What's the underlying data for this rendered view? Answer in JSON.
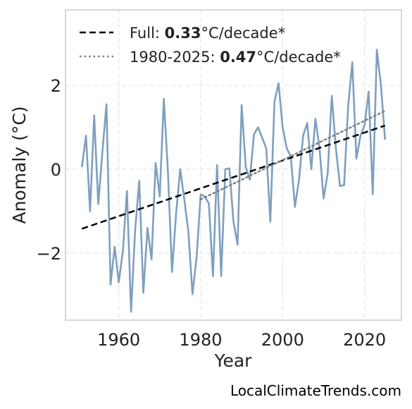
{
  "chart_data": {
    "type": "line",
    "xlabel": "Year",
    "ylabel": "Anomaly (°C)",
    "xlim": [
      1947,
      2029
    ],
    "ylim": [
      -3.6,
      3.8
    ],
    "x_ticks": [
      1960,
      1980,
      2000,
      2020
    ],
    "y_ticks": [
      -2,
      0,
      2
    ],
    "y_tick_labels": [
      "−2",
      "0",
      "2"
    ],
    "grid": true,
    "legend_position": "top-left",
    "series": [
      {
        "role": "observed",
        "color": "#7f9fbf",
        "x": [
          1951,
          1952,
          1953,
          1954,
          1955,
          1956,
          1957,
          1958,
          1959,
          1960,
          1961,
          1962,
          1963,
          1964,
          1965,
          1966,
          1967,
          1968,
          1969,
          1970,
          1971,
          1972,
          1973,
          1974,
          1975,
          1976,
          1977,
          1978,
          1979,
          1980,
          1981,
          1982,
          1983,
          1984,
          1985,
          1986,
          1987,
          1988,
          1989,
          1990,
          1991,
          1992,
          1993,
          1994,
          1995,
          1996,
          1997,
          1998,
          1999,
          2000,
          2001,
          2002,
          2003,
          2004,
          2005,
          2006,
          2007,
          2008,
          2009,
          2010,
          2011,
          2012,
          2013,
          2014,
          2015,
          2016,
          2017,
          2018,
          2019,
          2020,
          2021,
          2022,
          2023,
          2024,
          2025
        ],
        "values": [
          0.05,
          0.8,
          -1.0,
          1.28,
          -0.83,
          0.4,
          1.55,
          -2.75,
          -1.85,
          -2.7,
          -1.95,
          -0.52,
          -3.4,
          -1.45,
          -0.28,
          -2.95,
          -1.4,
          -2.15,
          0.15,
          -0.65,
          1.68,
          -0.05,
          -2.45,
          -1.05,
          0.0,
          -0.72,
          -1.5,
          -2.98,
          -2.1,
          -0.6,
          -0.65,
          -0.82,
          -2.55,
          0.1,
          -2.55,
          0.0,
          0.02,
          -1.25,
          -1.8,
          1.53,
          0.05,
          -0.25,
          0.83,
          1.0,
          0.75,
          0.5,
          -1.25,
          1.6,
          2.05,
          1.0,
          0.5,
          0.3,
          -0.9,
          -0.25,
          0.8,
          1.1,
          0.0,
          1.2,
          0.5,
          -0.7,
          -0.1,
          1.75,
          0.5,
          -0.4,
          -0.38,
          1.5,
          2.55,
          0.25,
          0.8,
          1.05,
          1.85,
          -0.6,
          2.85,
          2.0,
          0.7
        ]
      },
      {
        "role": "trend-full",
        "color": "#000000",
        "style": "dashed",
        "x": [
          1951,
          2025
        ],
        "values": [
          -1.42,
          1.04
        ]
      },
      {
        "role": "trend-recent",
        "color": "#808080",
        "style": "dotted",
        "x": [
          1980,
          2025
        ],
        "values": [
          -0.72,
          1.39
        ]
      }
    ],
    "legend": [
      {
        "prefix": "Full: ",
        "value": "0.33",
        "suffix": "°C/decade*",
        "style": "dashed",
        "color": "#000000"
      },
      {
        "prefix": "1980-2025: ",
        "value": "0.47",
        "suffix": "°C/decade*",
        "style": "dotted",
        "color": "#808080"
      }
    ]
  },
  "credit": "LocalClimateTrends.com",
  "colors": {
    "frame": "#cccccc",
    "grid": "#e6e6e6",
    "background": "#ffffff"
  }
}
